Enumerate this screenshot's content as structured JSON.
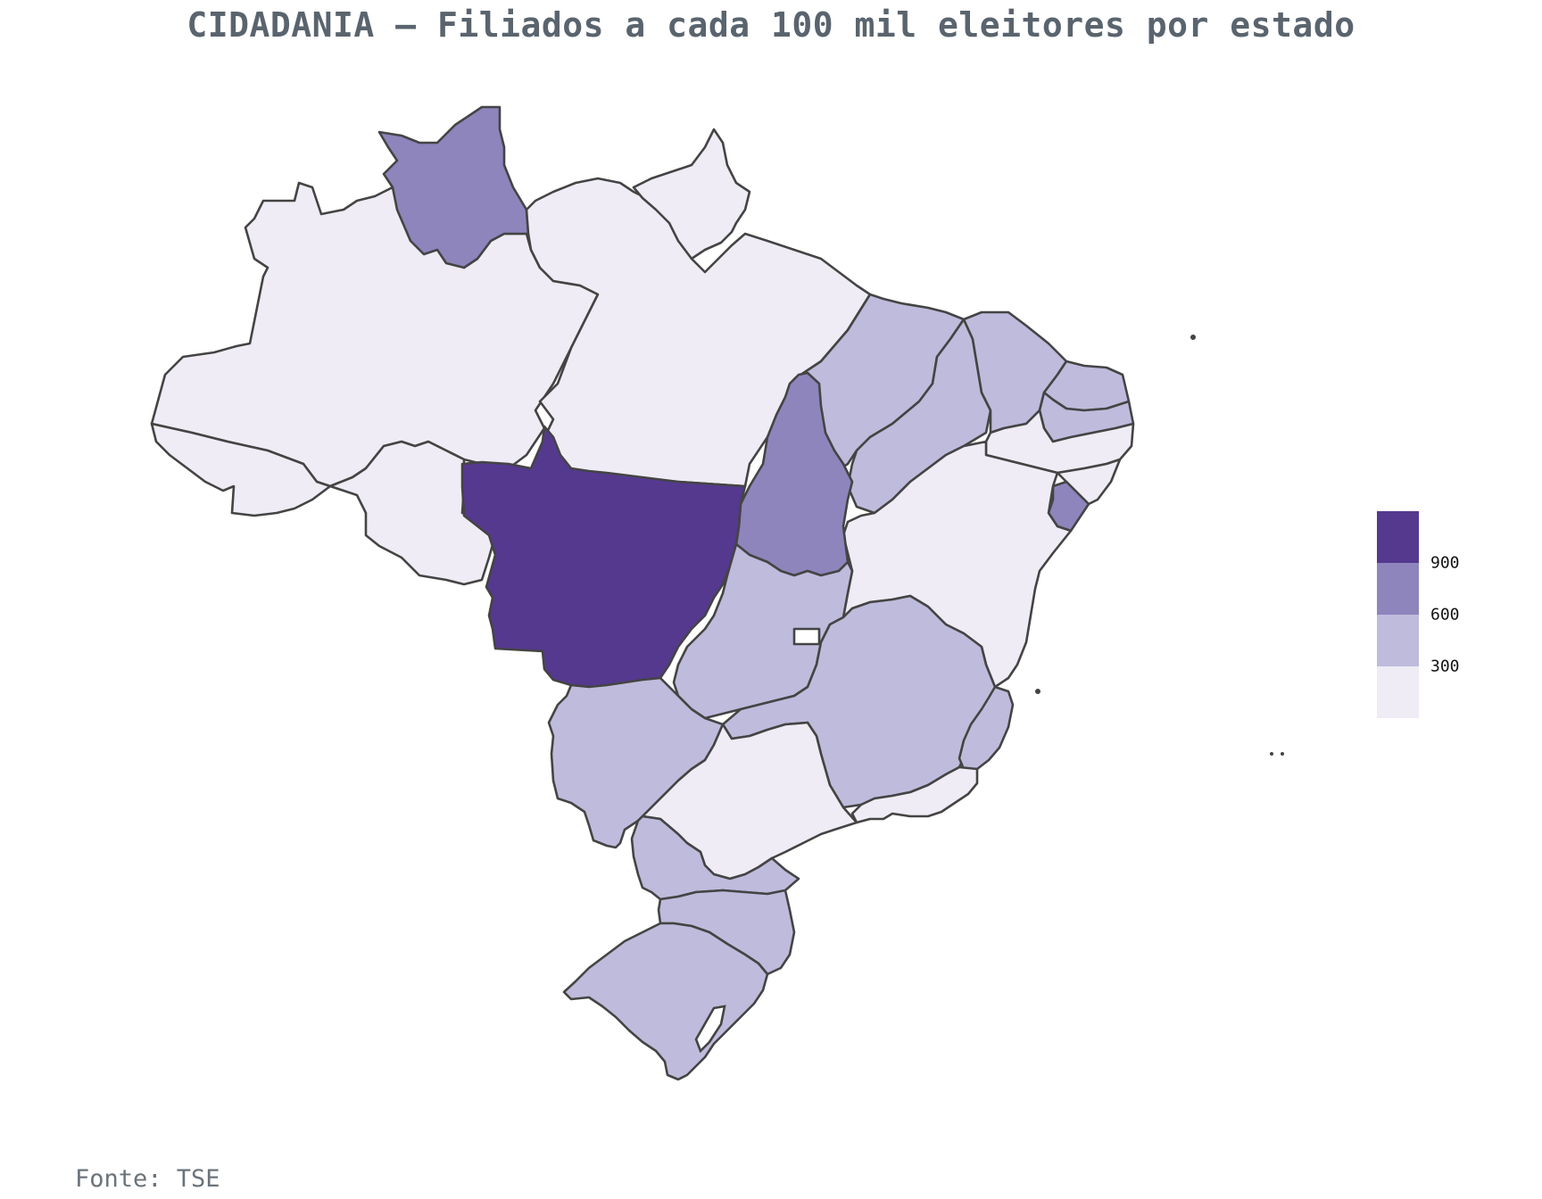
{
  "title": "CIDADANIA – Filiados a cada 100 mil eleitores por estado",
  "source": "Fonte: TSE",
  "legend": {
    "ticks": [
      "900",
      "600",
      "300"
    ],
    "bins": [
      {
        "range": "900+",
        "color": "#54398f"
      },
      {
        "range": "600–900",
        "color": "#8d85bc"
      },
      {
        "range": "300–600",
        "color": "#bfbbdc"
      },
      {
        "range": "0–300",
        "color": "#efecf5"
      }
    ]
  },
  "states": [
    {
      "name": "Mato Grosso",
      "bin": 0
    },
    {
      "name": "Roraima",
      "bin": 1
    },
    {
      "name": "Tocantins",
      "bin": 1
    },
    {
      "name": "Sergipe",
      "bin": 1
    },
    {
      "name": "Maranhão",
      "bin": 2
    },
    {
      "name": "Piauí",
      "bin": 2
    },
    {
      "name": "Ceará",
      "bin": 2
    },
    {
      "name": "Rio Grande do Norte",
      "bin": 2
    },
    {
      "name": "Paraíba",
      "bin": 2
    },
    {
      "name": "Goiás",
      "bin": 2
    },
    {
      "name": "Minas Gerais",
      "bin": 2
    },
    {
      "name": "Espírito Santo",
      "bin": 2
    },
    {
      "name": "Mato Grosso do Sul",
      "bin": 2
    },
    {
      "name": "Paraná",
      "bin": 2
    },
    {
      "name": "Santa Catarina",
      "bin": 2
    },
    {
      "name": "Rio Grande do Sul",
      "bin": 2
    },
    {
      "name": "Amazonas",
      "bin": 3
    },
    {
      "name": "Acre",
      "bin": 3
    },
    {
      "name": "Rondônia",
      "bin": 3
    },
    {
      "name": "Pará",
      "bin": 3
    },
    {
      "name": "Amapá",
      "bin": 3
    },
    {
      "name": "Pernambuco",
      "bin": 3
    },
    {
      "name": "Alagoas",
      "bin": 3
    },
    {
      "name": "Bahia",
      "bin": 3
    },
    {
      "name": "Rio de Janeiro",
      "bin": 3
    },
    {
      "name": "São Paulo",
      "bin": 3
    },
    {
      "name": "Distrito Federal",
      "bin": 3
    }
  ]
}
